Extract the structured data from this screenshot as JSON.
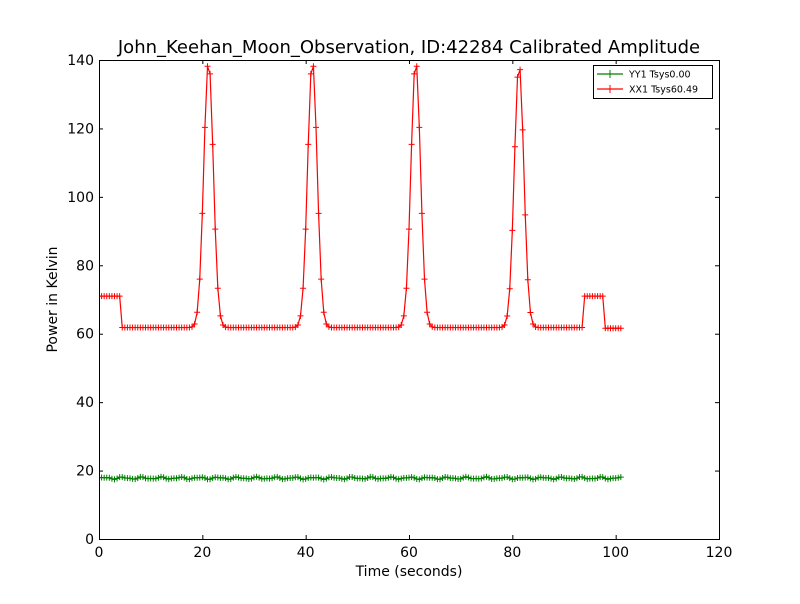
{
  "chart_data": {
    "type": "line",
    "title": "John_Keehan_Moon_Observation, ID:42284 Calibrated Amplitude",
    "xlabel": "Time (seconds)",
    "ylabel": "Power in Kelvin",
    "xlim": [
      0,
      120
    ],
    "ylim": [
      0,
      140
    ],
    "xticks": [
      0,
      20,
      40,
      60,
      80,
      100,
      120
    ],
    "yticks": [
      0,
      20,
      40,
      60,
      80,
      100,
      120,
      140
    ],
    "grid": false,
    "legend_position": "top-right",
    "marker": "+",
    "series": [
      {
        "name": "YY1 Tsys0.00",
        "color": "#008000",
        "time_range": [
          0,
          101
        ],
        "sample_step": 0.5,
        "level": 17.8
      },
      {
        "name": "XX1 Tsys60.49",
        "color": "#ff0000",
        "time_range": [
          0,
          101
        ],
        "sample_step": 0.5,
        "pre_level": 71,
        "pre_end": 4.3,
        "baseline": 61.8,
        "peaks": [
          {
            "time": 21.2,
            "value": 140
          },
          {
            "time": 41.3,
            "value": 140
          },
          {
            "time": 61.3,
            "value": 140
          },
          {
            "time": 81.3,
            "value": 139
          }
        ],
        "peak_width": 1.3,
        "post_segment": {
          "start": 93.8,
          "end": 97.5,
          "level": 71
        },
        "end_level": 61.6
      }
    ]
  }
}
